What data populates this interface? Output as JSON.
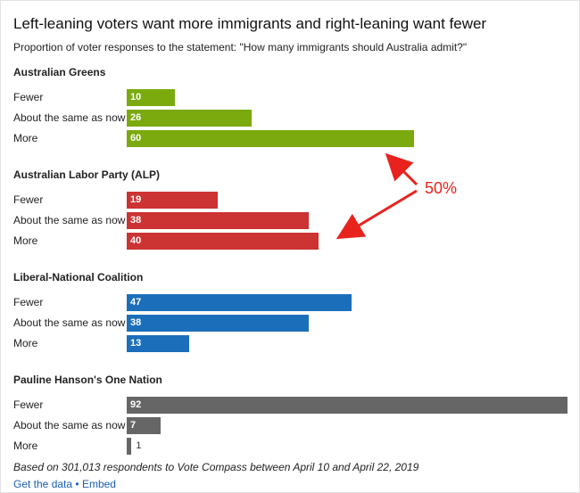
{
  "chart_data": {
    "type": "bar",
    "orientation": "horizontal",
    "title": "Left-leaning voters want more immigrants and right-leaning want fewer",
    "subtitle": "Proportion of voter responses to the statement: \"How many immigrants should Australia admit?\"",
    "categories": [
      "Fewer",
      "About the same as now",
      "More"
    ],
    "groups": [
      {
        "name": "Australian Greens",
        "color": "#7aaa0d",
        "values": [
          10,
          26,
          60
        ]
      },
      {
        "name": "Australian Labor Party (ALP)",
        "color": "#cc3333",
        "values": [
          19,
          38,
          40
        ]
      },
      {
        "name": "Liberal-National Coalition",
        "color": "#1b6fba",
        "values": [
          47,
          38,
          13
        ]
      },
      {
        "name": "Pauline Hanson's One Nation",
        "color": "#666666",
        "values": [
          92,
          7,
          1
        ]
      }
    ],
    "xlim": [
      0,
      92
    ],
    "grid": false,
    "annotation": {
      "text": "50%",
      "color": "#e8231e"
    },
    "footnote": "Based on 301,013 respondents to Vote Compass between April 10 and April 22, 2019"
  },
  "links": {
    "get_data": "Get the data",
    "separator": "•",
    "embed": "Embed"
  }
}
